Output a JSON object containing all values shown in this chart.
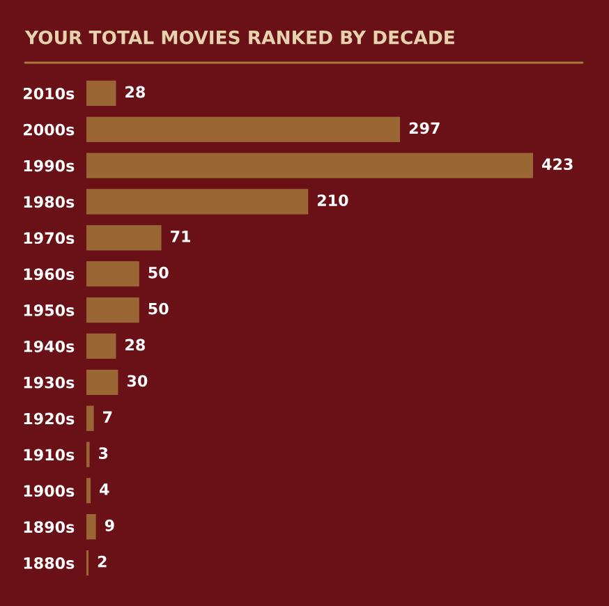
{
  "chart_data": {
    "type": "bar",
    "orientation": "horizontal",
    "title": "YOUR TOTAL MOVIES RANKED BY DECADE",
    "categories": [
      "2010s",
      "2000s",
      "1990s",
      "1980s",
      "1970s",
      "1960s",
      "1950s",
      "1940s",
      "1930s",
      "1920s",
      "1910s",
      "1900s",
      "1890s",
      "1880s"
    ],
    "values": [
      28,
      297,
      423,
      210,
      71,
      50,
      50,
      28,
      30,
      7,
      3,
      4,
      9,
      2
    ],
    "color": "#9a6634",
    "data_labels": true
  }
}
